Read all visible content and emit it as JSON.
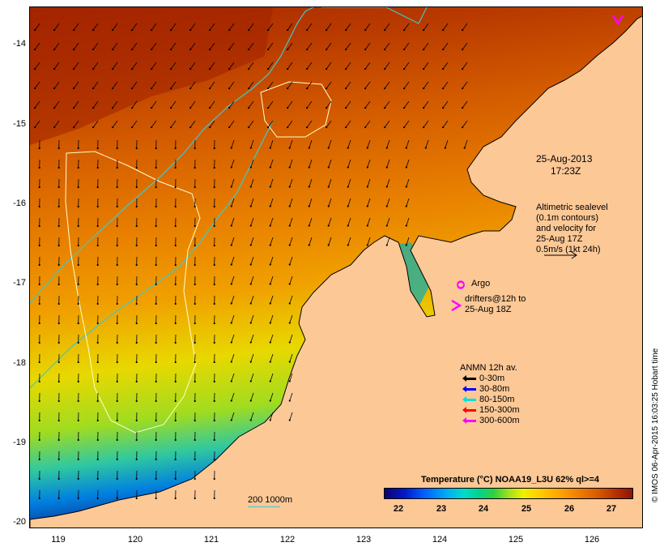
{
  "axes": {
    "y_ticks": [
      "-14",
      "-15",
      "-16",
      "-17",
      "-18",
      "-19",
      "-20"
    ],
    "x_ticks": [
      "119",
      "120",
      "121",
      "122",
      "123",
      "124",
      "125",
      "126"
    ]
  },
  "annotations": {
    "timestamp_line1": "25-Aug-2013",
    "timestamp_line2": "17:23Z",
    "altimetry_lines": [
      "Altimetric sealevel",
      "(0.1m contours)",
      "and velocity for",
      "25-Aug 17Z",
      "0.5m/s (1kt 24h)"
    ],
    "argo_label": "Argo",
    "drifters_line1": "drifters@12h to",
    "drifters_line2": "25-Aug 18Z",
    "isobath_label": "200  1000m",
    "credit": "© IMOS 06-Apr-2015 16:03:25 Hobart time"
  },
  "anmn_legend": {
    "title": "ANMN 12h av.",
    "items": [
      {
        "label": "0-30m",
        "color": "#000000"
      },
      {
        "label": "30-80m",
        "color": "#0000ff"
      },
      {
        "label": "80-150m",
        "color": "#00e0e0"
      },
      {
        "label": "150-300m",
        "color": "#ff0000"
      },
      {
        "label": "300-600m",
        "color": "#ff00ff"
      }
    ]
  },
  "colorbar": {
    "title": "Temperature (°C) NOAA19_L3U 62% ql>=4",
    "ticks": [
      "22",
      "23",
      "24",
      "25",
      "26",
      "27"
    ]
  },
  "colors": {
    "land": "#fcc896",
    "isobath": "#40c8c8",
    "contour": "#ffffc8",
    "argo": "#ff00ff"
  }
}
